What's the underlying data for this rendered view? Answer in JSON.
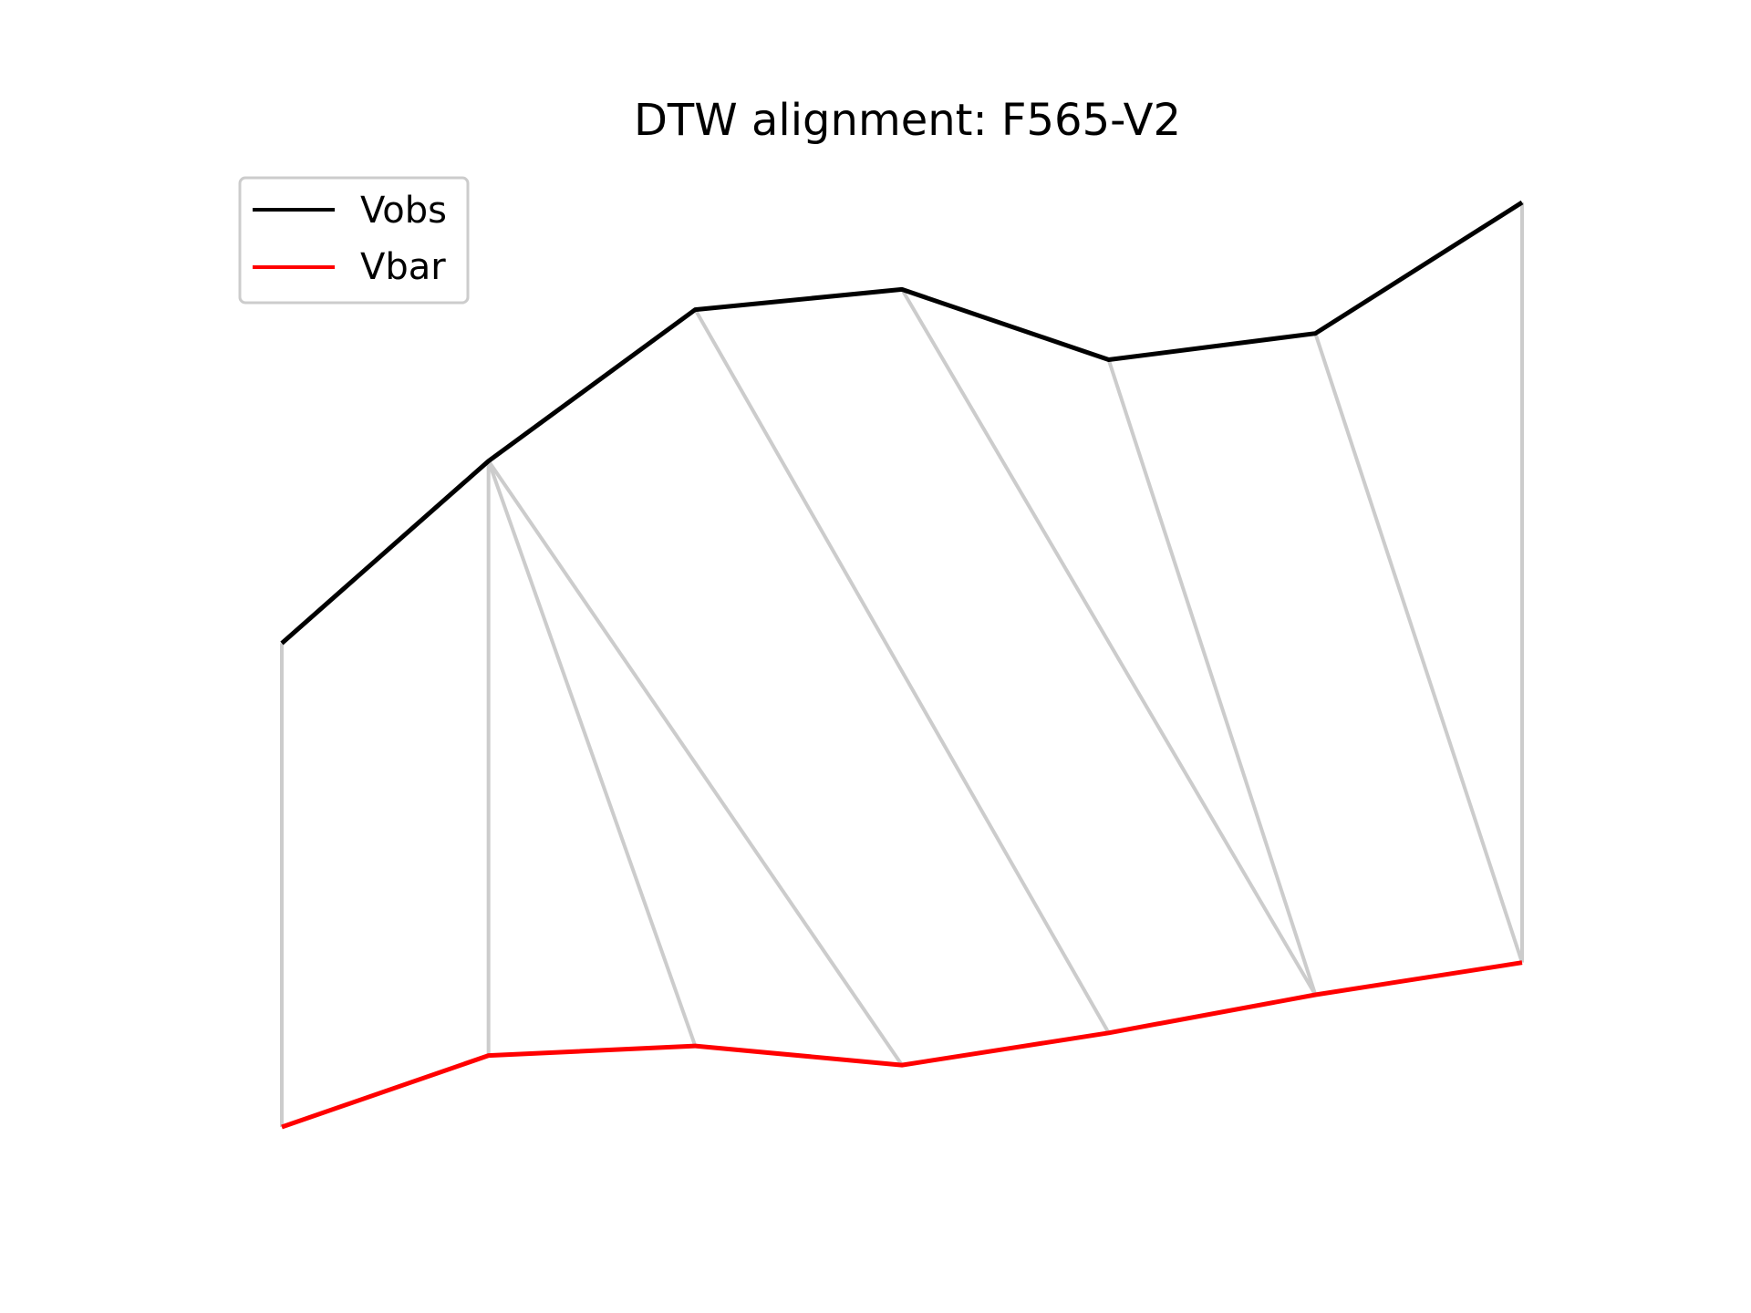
{
  "chart_data": {
    "type": "line",
    "title": "DTW alignment: F565-V2",
    "xlabel": "",
    "ylabel": "",
    "axes_visible": false,
    "grid": false,
    "legend": {
      "placement": "top-left"
    },
    "x": [
      0,
      1,
      2,
      3,
      4,
      5,
      6
    ],
    "series": [
      {
        "name": "Vobs",
        "color": "#000000",
        "values": [
          1.48,
          3.01,
          4.28,
          4.45,
          3.86,
          4.08,
          5.18
        ]
      },
      {
        "name": "Vbar",
        "color": "#ff0000",
        "values": [
          -2.58,
          -1.98,
          -1.9,
          -2.06,
          -1.79,
          -1.47,
          -1.2
        ]
      }
    ],
    "alignment_color": "#cccccc",
    "alignment_pairs": [
      [
        0,
        0
      ],
      [
        1,
        1
      ],
      [
        1,
        2
      ],
      [
        1,
        3
      ],
      [
        2,
        4
      ],
      [
        3,
        5
      ],
      [
        4,
        5
      ],
      [
        5,
        6
      ],
      [
        6,
        6
      ]
    ]
  }
}
